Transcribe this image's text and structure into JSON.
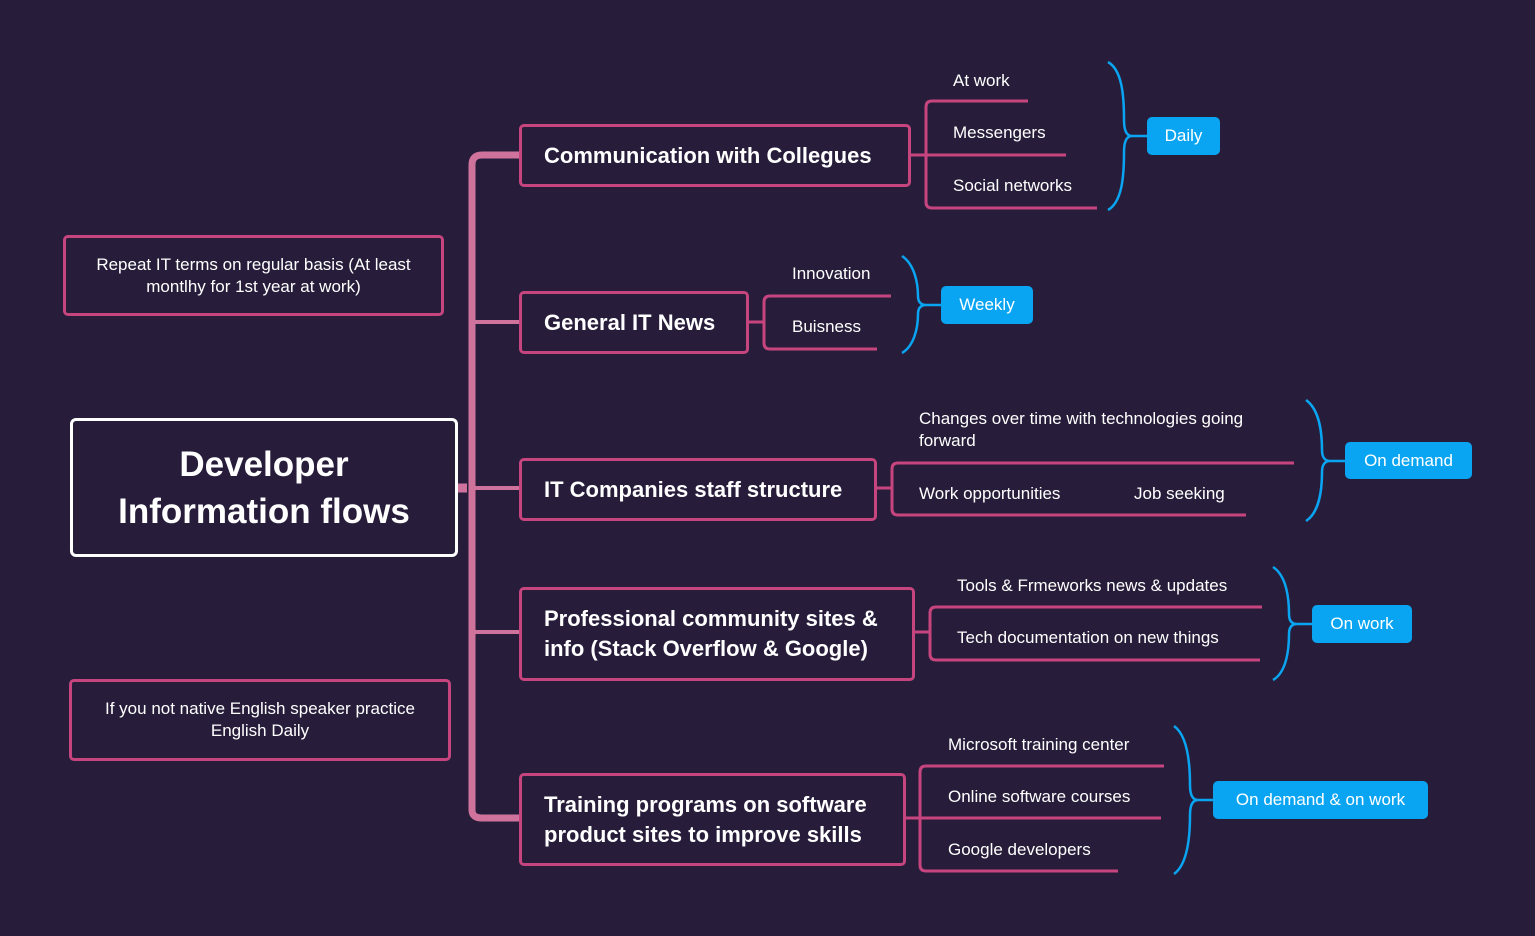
{
  "central_topic": {
    "line1": "Developer",
    "line2": "Information flows"
  },
  "notes": [
    {
      "text": "Repeat IT terms on regular basis (At least montlhy for 1st year at work)"
    },
    {
      "text": "If you not native English speaker practice English Daily"
    }
  ],
  "topics": [
    {
      "title": "Communication with Collegues",
      "subtopics": [
        "At work",
        "Messengers",
        "Social networks"
      ],
      "frequency": "Daily"
    },
    {
      "title": "General IT News",
      "subtopics": [
        "Innovation",
        "Buisness"
      ],
      "frequency": "Weekly"
    },
    {
      "title": "IT Companies staff structure",
      "subtopics": [
        "Changes over time with technologies going forward",
        "Work opportunities",
        "Job seeking"
      ],
      "frequency": "On demand"
    },
    {
      "title": "Professional community sites & info  (Stack Overflow & Google)",
      "subtopics": [
        "Tools & Frmeworks news & updates",
        "Tech documentation on new things"
      ],
      "frequency": "On work"
    },
    {
      "title": "Training programs on software product sites to improve skills",
      "subtopics": [
        "Microsoft training center",
        "Online software courses",
        "Google developers"
      ],
      "frequency": "On demand & on work"
    }
  ],
  "colors": {
    "background": "#271d3a",
    "connector": "#c7457f",
    "spine": "#d0739c",
    "bracket": "#0aa5f2",
    "badge": "#0aa5f2",
    "central_border": "#ffffff"
  }
}
